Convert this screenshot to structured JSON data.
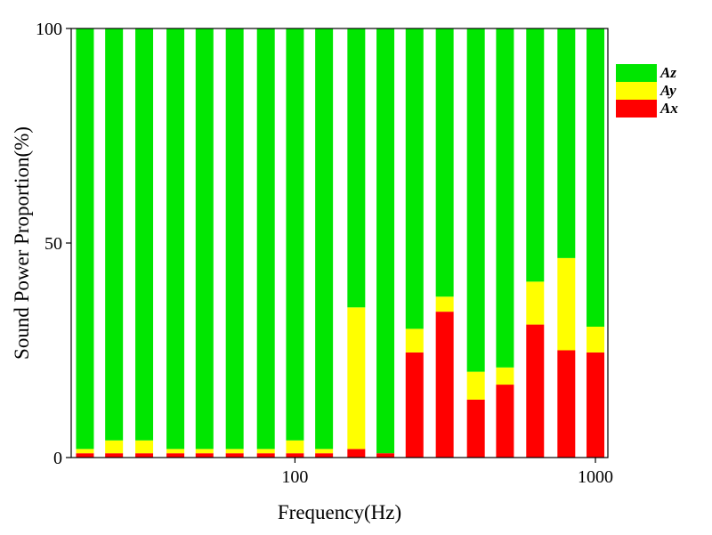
{
  "chart_data": {
    "type": "bar",
    "stacked": true,
    "x_scale": "log",
    "xlabel": "Frequency(Hz)",
    "ylabel": "Sound Power Proportion(%)",
    "ylim": [
      0,
      100
    ],
    "xlim": [
      18,
      1100
    ],
    "x_ticks": [
      100,
      1000
    ],
    "x_tick_labels": [
      "100",
      "1000"
    ],
    "y_ticks": [
      0,
      50,
      100
    ],
    "y_tick_labels": [
      "0",
      "50",
      "100"
    ],
    "categories": [
      20,
      25,
      31.5,
      40,
      50,
      63,
      80,
      100,
      125,
      160,
      200,
      250,
      315,
      400,
      500,
      630,
      800,
      1000
    ],
    "series": [
      {
        "name": "Ax",
        "color": "#ff0000",
        "values": [
          1,
          1,
          1,
          1,
          1,
          1,
          1,
          1,
          1,
          2,
          1,
          24.5,
          34,
          13.5,
          17,
          31,
          25,
          24.5
        ]
      },
      {
        "name": "Ay",
        "color": "#ffff00",
        "values": [
          1,
          3,
          3,
          1,
          1,
          1,
          1,
          3,
          1,
          33,
          0,
          5.5,
          3.5,
          6.5,
          4,
          10,
          21.5,
          6
        ]
      },
      {
        "name": "Az",
        "color": "#00e600",
        "values": [
          98,
          96,
          96,
          98,
          98,
          98,
          98,
          96,
          98,
          65,
          99,
          70,
          62.5,
          80,
          79,
          59,
          53.5,
          69.5
        ]
      }
    ],
    "legend": {
      "position": "right",
      "order": [
        "Az",
        "Ay",
        "Ax"
      ]
    },
    "grid": false
  }
}
